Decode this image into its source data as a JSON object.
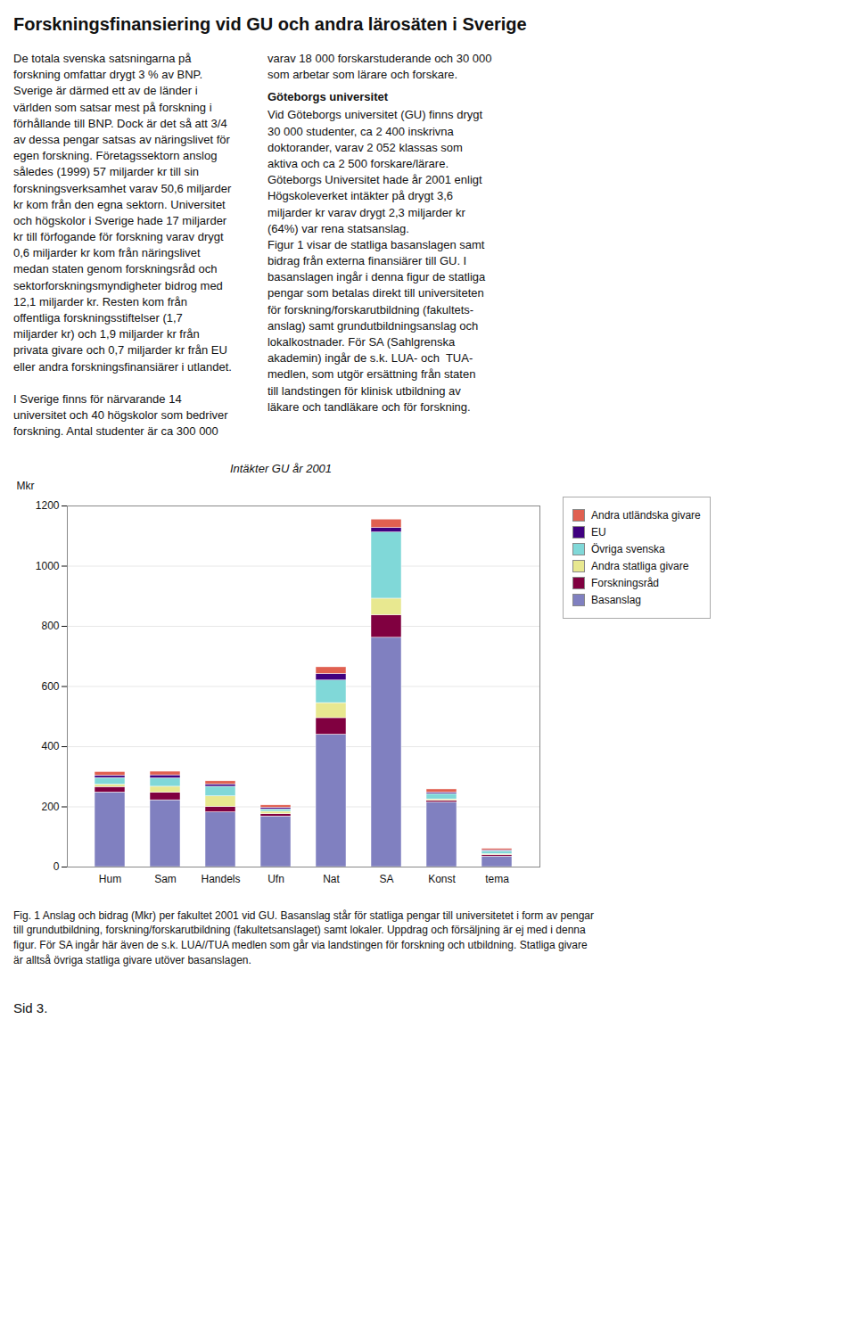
{
  "chart_data": {
    "type": "bar",
    "stacked": true,
    "title": "Intäkter GU år 2001",
    "ylabel": "Mkr",
    "categories": [
      "Hum",
      "Sam",
      "Handels",
      "Ufn",
      "Nat",
      "SA",
      "Konst",
      "tema"
    ],
    "series": [
      {
        "name": "Basanslag",
        "color": "#8080c0",
        "values": [
          248,
          222,
          182,
          168,
          440,
          762,
          215,
          35
        ]
      },
      {
        "name": "Forskningsråd",
        "color": "#800040",
        "values": [
          18,
          25,
          18,
          8,
          55,
          75,
          5,
          5
        ]
      },
      {
        "name": "Andra statliga givare",
        "color": "#e8e890",
        "values": [
          8,
          20,
          35,
          8,
          50,
          55,
          5,
          3
        ]
      },
      {
        "name": "Övriga svenska",
        "color": "#80d8d8",
        "values": [
          22,
          28,
          32,
          8,
          75,
          220,
          18,
          10
        ]
      },
      {
        "name": "EU",
        "color": "#400080",
        "values": [
          8,
          10,
          8,
          5,
          22,
          15,
          5,
          3
        ]
      },
      {
        "name": "Andra utländska givare",
        "color": "#e06050",
        "values": [
          12,
          12,
          10,
          8,
          22,
          28,
          10,
          5
        ]
      }
    ],
    "ylim": [
      0,
      1200
    ],
    "yticks": [
      0,
      200,
      400,
      600,
      800,
      1000,
      1200
    ],
    "grid": true,
    "legend": "right",
    "annotations": [
      "Forskningsfinansiering vid GU och andra lärosäten i Sverige",
      "De totala svenska satsningarna på\nforskning omfattar drygt 3 % av BNP.\nSverige är därmed ett av de länder i\nvärlden som satsar mest på forskning i\nförhållande till BNP. Dock är det så att 3/4\nav dessa pengar satsas av näringslivet för\negen forskning. Företagssektorn anslog\nsåledes (1999) 57 miljarder kr till sin\nforskningsverksamhet varav 50,6 miljarder\nkr kom från den egna sektorn. Universitet\noch högskolor i Sverige hade 17 miljarder\nkr till förfogande för forskning varav drygt\n0,6 miljarder kr kom från näringslivet\nmedan staten genom forskningsråd och\nsektorforskningsmyndigheter bidrog med\n12,1 miljarder kr. Resten kom från\noffentliga forskningsstiftelser (1,7\nmiljarder kr) och 1,9 miljarder kr från\nprivata givare och 0,7 miljarder kr från EU\neller andra forskningsfinansiärer i utlandet.\n\nI Sverige finns för närvarande 14\nuniversitet och 40 högskolor som bedriver\nforskning. Antal studenter är ca 300 000",
      "varav 18 000 forskarstuderande och 30 000\nsom arbetar som lärare och forskare.",
      "Göteborgs universitet",
      "Vid Göteborgs universitet (GU) finns drygt\n30 000 studenter, ca 2 400 inskrivna\ndoktorander, varav 2 052 klassas som\naktiva och ca 2 500 forskare/lärare.\nGöteborgs Universitet hade år 2001 enligt\nHögskoleverket intäkter på drygt 3,6\nmiljarder kr varav drygt 2,3 miljarder kr\n(64%) var rena statsanslag.\nFigur 1 visar de statliga basanslagen samt\nbidrag från externa finansiärer till GU. I\nbasanslagen ingår i denna figur de statliga\npengar som betalas direkt till universiteten\nför forskning/forskarutbildning (fakultets-\nanslag) samt grundutbildningsanslag och\nlokalkostnader. För SA (Sahlgrenska\nakademin) ingår de s.k. LUA- och  TUA-\nmedlen, som utgör ersättning från staten\ntill landstingen för klinisk utbildning av\nläkare och tandläkare och för forskning.",
      "Fig. 1 Anslag och bidrag (Mkr) per fakultet 2001 vid GU. Basanslag står för statliga pengar till universitetet i form av pengar\ntill grundutbildning, forskning/forskarutbildning (fakultetsanslaget) samt lokaler. Uppdrag och försäljning är ej med i denna\nfigur. För SA ingår här även de s.k. LUA//TUA medlen som går via landstingen för forskning och utbildning. Statliga givare\när alltså övriga statliga givare utöver basanslagen.",
      "Sid 3."
    ]
  }
}
